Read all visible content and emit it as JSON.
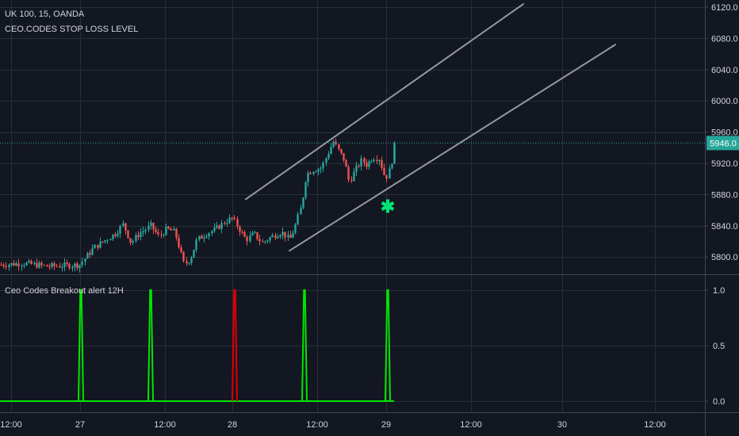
{
  "header": {
    "symbol_line": "UK 100, 15, OANDA",
    "indicator_line": "CEO.CODES STOP LOSS LEVEL"
  },
  "lower_pane": {
    "title": "Ceo Codes Breakout alert 12H"
  },
  "colors": {
    "background": "#131722",
    "grid": "#2a2e39",
    "up_candle": "#26a69a",
    "down_candle": "#ef5350",
    "price_line": "#26a69a",
    "channel": "#9598a1",
    "signal_green": "#00e600",
    "signal_red": "#e00000",
    "price_label_bg": "#26a69a",
    "marker": "#00e676"
  },
  "current_price_label": "5946.0",
  "marker_icon": "asterisk-icon",
  "chart_data": [
    {
      "type": "candlestick",
      "title": "UK 100, 15, OANDA",
      "yticks": [
        "6120.0",
        "6080.0",
        "6040.0",
        "6000.0",
        "5960.0",
        "5920.0",
        "5880.0",
        "5840.0",
        "5800.0"
      ],
      "ylim": [
        5778,
        6128
      ],
      "xticks": [
        "12:00",
        "27",
        "12:00",
        "28",
        "12:00",
        "29",
        "12:00",
        "30",
        "12:00"
      ],
      "current_price": 5946.0,
      "overlay": "CEO.CODES STOP LOSS LEVEL",
      "close_path": [
        [
          0,
          5790
        ],
        [
          30,
          5792
        ],
        [
          60,
          5788
        ],
        [
          100,
          5790
        ],
        [
          118,
          5812
        ],
        [
          130,
          5820
        ],
        [
          145,
          5830
        ],
        [
          155,
          5842
        ],
        [
          165,
          5818
        ],
        [
          175,
          5830
        ],
        [
          190,
          5840
        ],
        [
          200,
          5826
        ],
        [
          210,
          5836
        ],
        [
          220,
          5832
        ],
        [
          232,
          5790
        ],
        [
          240,
          5798
        ],
        [
          248,
          5822
        ],
        [
          260,
          5830
        ],
        [
          272,
          5836
        ],
        [
          282,
          5844
        ],
        [
          292,
          5850
        ],
        [
          300,
          5838
        ],
        [
          310,
          5822
        ],
        [
          320,
          5830
        ],
        [
          330,
          5818
        ],
        [
          342,
          5826
        ],
        [
          355,
          5832
        ],
        [
          365,
          5822
        ],
        [
          372,
          5840
        ],
        [
          380,
          5866
        ],
        [
          386,
          5906
        ],
        [
          395,
          5912
        ],
        [
          405,
          5914
        ],
        [
          412,
          5930
        ],
        [
          420,
          5948
        ],
        [
          428,
          5934
        ],
        [
          434,
          5924
        ],
        [
          440,
          5896
        ],
        [
          448,
          5912
        ],
        [
          456,
          5924
        ],
        [
          462,
          5918
        ],
        [
          470,
          5928
        ],
        [
          478,
          5926
        ],
        [
          486,
          5900
        ],
        [
          492,
          5914
        ],
        [
          498,
          5944
        ]
      ],
      "channel_upper": [
        [
          310,
          5874
        ],
        [
          660,
          6124
        ]
      ],
      "channel_lower": [
        [
          365,
          5808
        ],
        [
          776,
          6072
        ]
      ],
      "stop_marker": {
        "t": 489,
        "price": 5865
      }
    },
    {
      "type": "line",
      "title": "Ceo Codes Breakout alert 12H",
      "yticks": [
        "1.0",
        "0.5",
        "0.0"
      ],
      "ylim": [
        0,
        1
      ],
      "series": [
        {
          "spikes": [
            {
              "t": 102,
              "value": 1,
              "color": "green"
            },
            {
              "t": 190,
              "value": 1,
              "color": "green"
            },
            {
              "t": 296,
              "value": 1,
              "color": "red"
            },
            {
              "t": 384,
              "value": 1,
              "color": "green"
            },
            {
              "t": 489,
              "value": 1,
              "color": "green"
            }
          ],
          "baseline": 0
        }
      ]
    }
  ]
}
